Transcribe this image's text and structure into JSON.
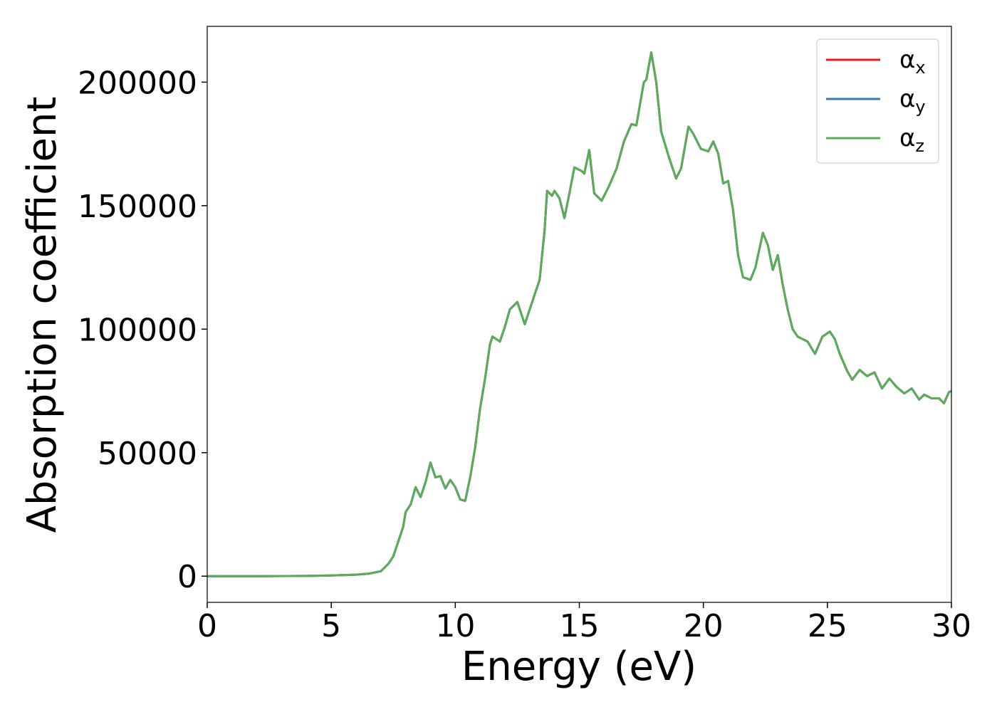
{
  "chart_data": {
    "type": "line",
    "xlabel": "Energy (eV)",
    "ylabel": "Absorption coefficient",
    "x": [
      0,
      2,
      4,
      5,
      6,
      6.5,
      7,
      7.3,
      7.5,
      7.7,
      7.9,
      8.0,
      8.2,
      8.4,
      8.6,
      8.8,
      9.0,
      9.2,
      9.4,
      9.6,
      9.8,
      10.0,
      10.2,
      10.4,
      10.6,
      10.8,
      11.0,
      11.2,
      11.4,
      11.5,
      11.8,
      12.0,
      12.2,
      12.5,
      12.8,
      13.0,
      13.2,
      13.4,
      13.6,
      13.7,
      13.9,
      14.0,
      14.2,
      14.4,
      14.6,
      14.8,
      15.1,
      15.2,
      15.4,
      15.6,
      15.9,
      16.2,
      16.5,
      16.8,
      17.1,
      17.3,
      17.6,
      17.7,
      17.9,
      18.1,
      18.3,
      18.6,
      18.9,
      19.1,
      19.4,
      19.6,
      19.9,
      20.2,
      20.4,
      20.6,
      20.8,
      21.0,
      21.2,
      21.4,
      21.6,
      21.9,
      22.1,
      22.4,
      22.6,
      22.8,
      23.0,
      23.2,
      23.4,
      23.6,
      23.8,
      24.0,
      24.2,
      24.5,
      24.8,
      25.1,
      25.3,
      25.5,
      25.8,
      26.0,
      26.3,
      26.6,
      26.9,
      27.2,
      27.5,
      27.8,
      28.1,
      28.4,
      28.7,
      28.9,
      29.2,
      29.5,
      29.7,
      29.9,
      30
    ],
    "series": [
      {
        "name": "αx",
        "color": "#e41a1c",
        "values": [
          0,
          0,
          100,
          300,
          600,
          1000,
          2000,
          5000,
          8000,
          14000,
          20000,
          26000,
          29000,
          36000,
          32000,
          38000,
          46000,
          40000,
          40500,
          35500,
          39000,
          36000,
          31000,
          30500,
          40000,
          52000,
          68000,
          80000,
          94000,
          97000,
          95000,
          101000,
          108000,
          111000,
          102000,
          108000,
          114000,
          120000,
          140000,
          156000,
          154000,
          156000,
          153000,
          145000,
          155000,
          165500,
          164000,
          163000,
          172500,
          155000,
          152000,
          158000,
          165000,
          176000,
          183000,
          182500,
          200000,
          201000,
          212000,
          200000,
          180000,
          170000,
          161000,
          165000,
          182000,
          179000,
          173000,
          172000,
          176000,
          171000,
          159000,
          160000,
          148000,
          130000,
          121000,
          120000,
          125000,
          139000,
          134000,
          124000,
          130000,
          118000,
          108000,
          100000,
          97000,
          96000,
          95000,
          90000,
          97000,
          99000,
          96000,
          90000,
          83000,
          79500,
          83500,
          81000,
          82500,
          76000,
          80000,
          76500,
          74000,
          76000,
          71500,
          73500,
          72000,
          72000,
          70000,
          74500,
          75000
        ]
      },
      {
        "name": "αy",
        "color": "#377eb8",
        "values": [
          0,
          0,
          100,
          300,
          600,
          1000,
          2000,
          5000,
          8000,
          14000,
          20000,
          26000,
          29000,
          36000,
          32000,
          38000,
          46000,
          40000,
          40500,
          35500,
          39000,
          36000,
          31000,
          30500,
          40000,
          52000,
          68000,
          80000,
          94000,
          97000,
          95000,
          101000,
          108000,
          111000,
          102000,
          108000,
          114000,
          120000,
          140000,
          156000,
          154000,
          156000,
          153000,
          145000,
          155000,
          165500,
          164000,
          163000,
          172500,
          155000,
          152000,
          158000,
          165000,
          176000,
          183000,
          182500,
          200000,
          201000,
          212000,
          200000,
          180000,
          170000,
          161000,
          165000,
          182000,
          179000,
          173000,
          172000,
          176000,
          171000,
          159000,
          160000,
          148000,
          130000,
          121000,
          120000,
          125000,
          139000,
          134000,
          124000,
          130000,
          118000,
          108000,
          100000,
          97000,
          96000,
          95000,
          90000,
          97000,
          99000,
          96000,
          90000,
          83000,
          79500,
          83500,
          81000,
          82500,
          76000,
          80000,
          76500,
          74000,
          76000,
          71500,
          73500,
          72000,
          72000,
          70000,
          74500,
          75000
        ]
      },
      {
        "name": "αz",
        "color": "#5aad58",
        "values": [
          0,
          0,
          100,
          300,
          600,
          1000,
          2000,
          5000,
          8000,
          14000,
          20000,
          26000,
          29000,
          36000,
          32000,
          38000,
          46000,
          40000,
          40500,
          35500,
          39000,
          36000,
          31000,
          30500,
          40000,
          52000,
          68000,
          80000,
          94000,
          97000,
          95000,
          101000,
          108000,
          111000,
          102000,
          108000,
          114000,
          120000,
          140000,
          156000,
          154000,
          156000,
          153000,
          145000,
          155000,
          165500,
          164000,
          163000,
          172500,
          155000,
          152000,
          158000,
          165000,
          176000,
          183000,
          182500,
          200000,
          201000,
          212000,
          200000,
          180000,
          170000,
          161000,
          165000,
          182000,
          179000,
          173000,
          172000,
          176000,
          171000,
          159000,
          160000,
          148000,
          130000,
          121000,
          120000,
          125000,
          139000,
          134000,
          124000,
          130000,
          118000,
          108000,
          100000,
          97000,
          96000,
          95000,
          90000,
          97000,
          99000,
          96000,
          90000,
          83000,
          79500,
          83500,
          81000,
          82500,
          76000,
          80000,
          76500,
          74000,
          76000,
          71500,
          73500,
          72000,
          72000,
          70000,
          74500,
          75000
        ]
      }
    ],
    "xlim": [
      0,
      30
    ],
    "xticks": [
      0,
      5,
      10,
      15,
      20,
      25,
      30
    ],
    "ylim": [
      -10600,
      222600
    ],
    "yticks": [
      0,
      50000,
      100000,
      150000,
      200000
    ],
    "legend": "upper right"
  }
}
